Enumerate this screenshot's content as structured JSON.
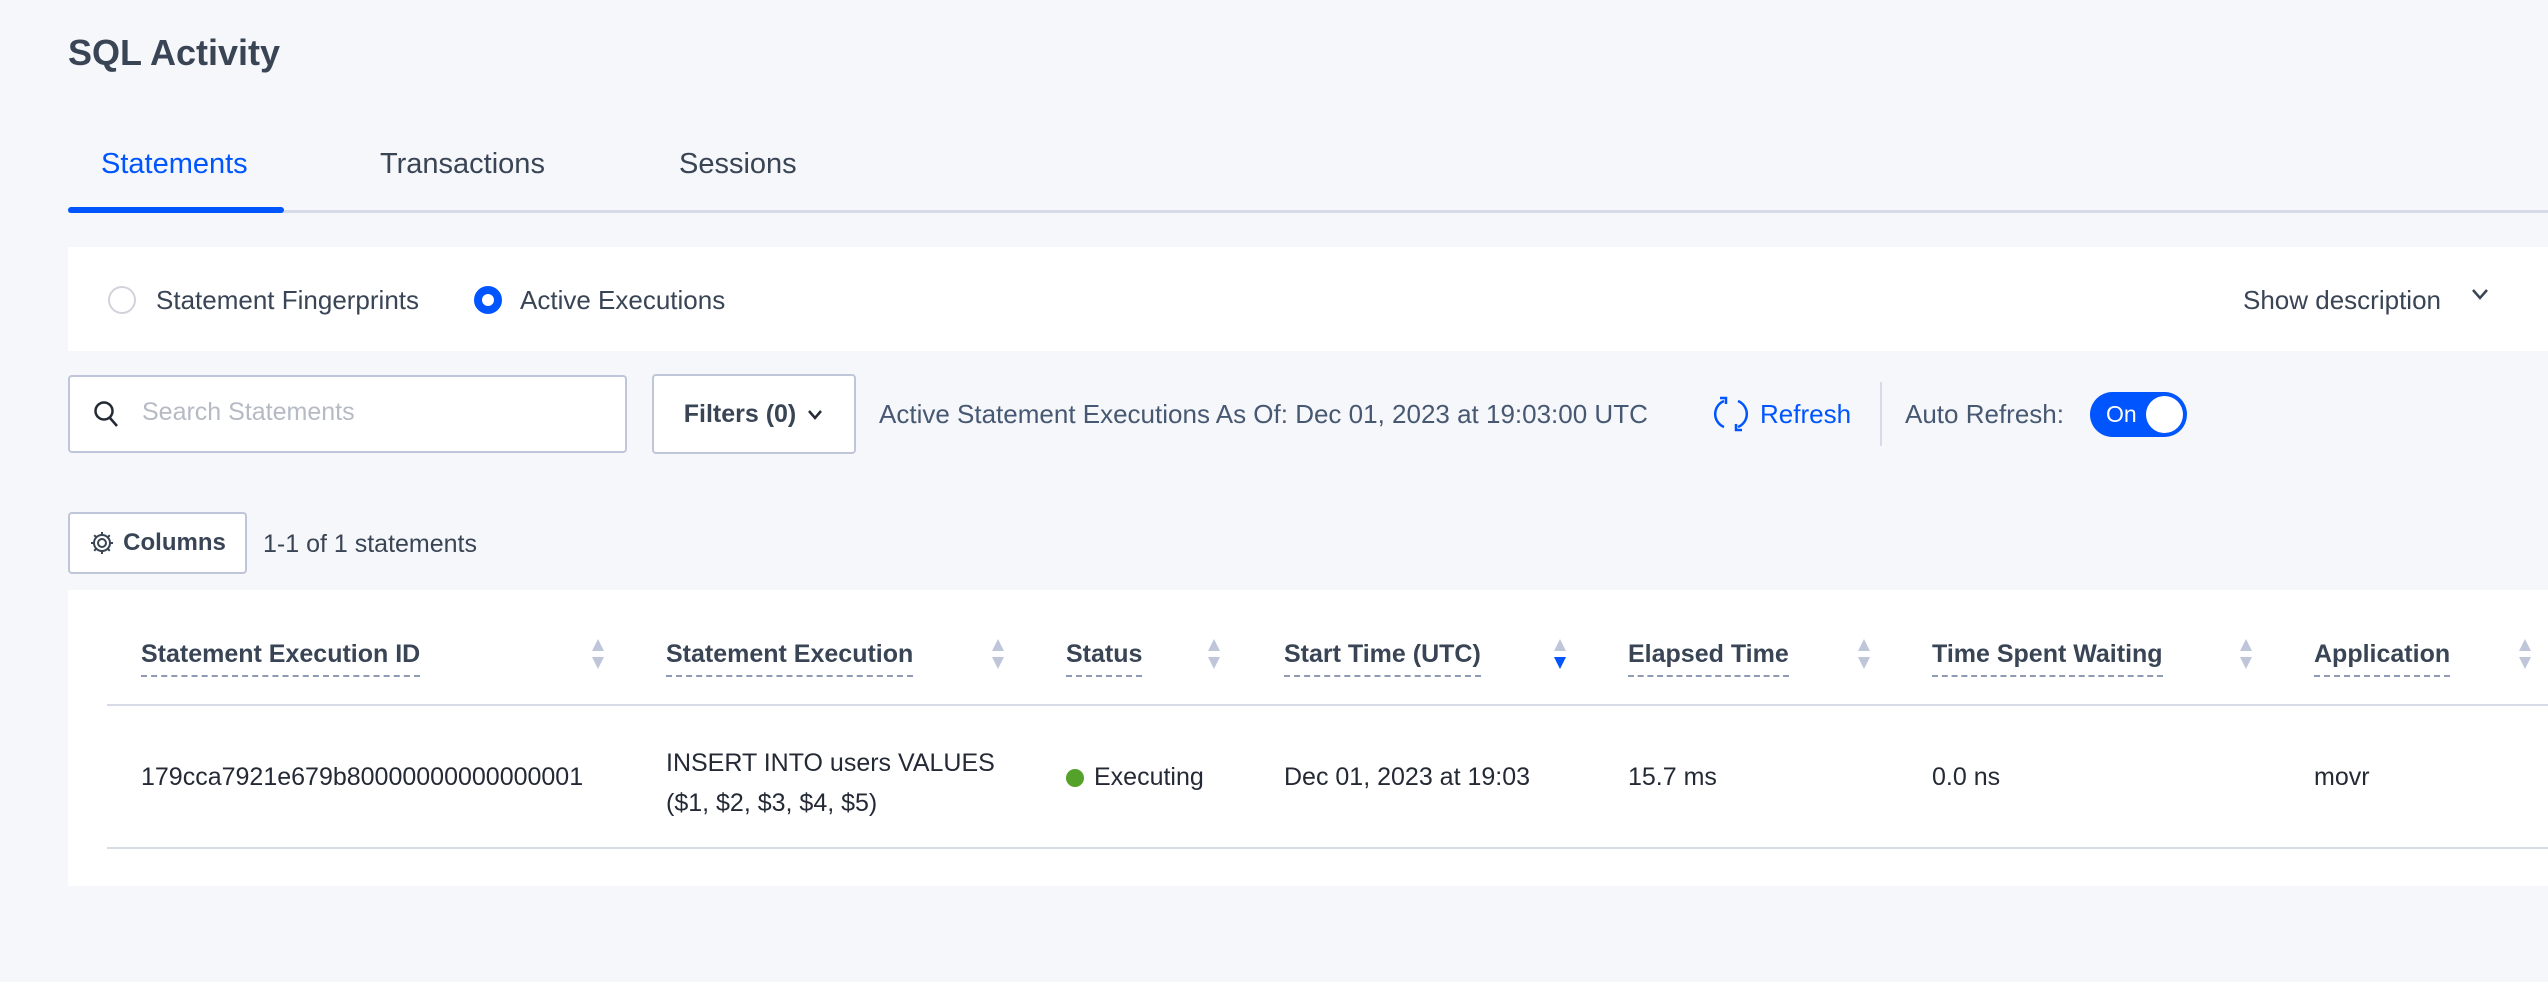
{
  "page": {
    "title": "SQL Activity"
  },
  "tabs": [
    {
      "label": "Statements",
      "active": true
    },
    {
      "label": "Transactions",
      "active": false
    },
    {
      "label": "Sessions",
      "active": false
    }
  ],
  "mode": {
    "options": [
      {
        "label": "Statement Fingerprints",
        "selected": false
      },
      {
        "label": "Active Executions",
        "selected": true
      }
    ],
    "show_description": "Show description"
  },
  "toolbar": {
    "search_placeholder": "Search Statements",
    "search_value": "",
    "filters_label": "Filters (0)",
    "as_of": "Active Statement Executions As Of: Dec 01, 2023 at 19:03:00 UTC",
    "refresh_label": "Refresh",
    "auto_refresh_label": "Auto Refresh:",
    "auto_refresh_state": "On",
    "columns_label": "Columns",
    "count_text": "1-1 of 1 statements"
  },
  "table": {
    "columns": [
      "Statement Execution ID",
      "Statement Execution",
      "Status",
      "Start Time (UTC)",
      "Elapsed Time",
      "Time Spent Waiting",
      "Application"
    ],
    "sorted_column": "Start Time (UTC)",
    "sort_direction": "descending",
    "rows": [
      {
        "id": "179cca7921e679b80000000000000001",
        "statement_line1": "INSERT INTO users VALUES",
        "statement_line2": "($1, $2, $3, $4, $5)",
        "status": "Executing",
        "start_time": "Dec 01, 2023 at 19:03",
        "elapsed": "15.7 ms",
        "waiting": "0.0 ns",
        "application": "movr"
      }
    ]
  },
  "colors": {
    "accent": "#0055ff",
    "status_executing": "#54a22a",
    "text": "#394455",
    "background": "#f5f7fa"
  }
}
